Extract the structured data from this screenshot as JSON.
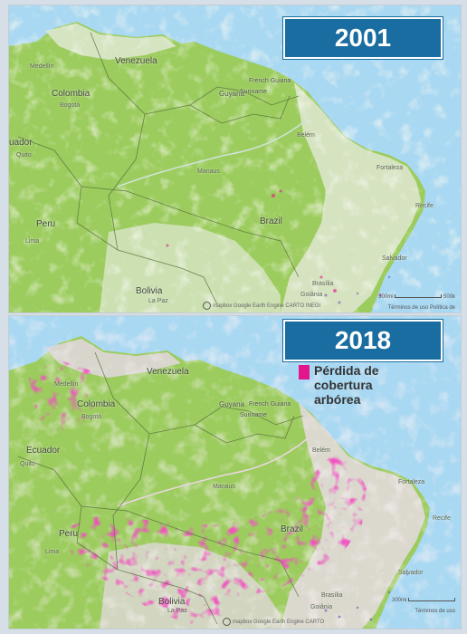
{
  "panels": [
    {
      "year": "2001",
      "labels": {
        "venezuela": "Venezuela",
        "colombia": "Colombia",
        "guyana": "Guyana",
        "suriname": "Suriname",
        "french_guiana": "French Guiana",
        "ecuador": "uador",
        "peru": "Peru",
        "brazil": "Brazil",
        "bolivia": "Bolivia",
        "lima": "Lima",
        "medellin": "Medellín",
        "bogota": "Bogotá",
        "quito": "Quito",
        "fortaleza": "Fortaleza",
        "recife": "Recife",
        "salvador": "Salvador",
        "brasilia": "Brasília",
        "goiania": "Goiânia",
        "la_paz": "La Paz",
        "manaus": "Manaus",
        "belem": "Belém"
      },
      "attribution": "mapbox  Google Earth Engine  CARTO  INEGI",
      "scale_label": "300mi",
      "scale_label_km": "500k",
      "terms": "Términos de uso  Política de"
    },
    {
      "year": "2018",
      "labels": {
        "venezuela": "Venezuela",
        "colombia": "Colombia",
        "guyana": "Guyana",
        "suriname": "Suriname",
        "french_guiana": "French Guiana",
        "ecuador": "Ecuador",
        "peru": "Peru",
        "brazil": "Brazil",
        "bolivia": "Bolivia",
        "lima": "Lima",
        "medellin": "Medellín",
        "bogota": "Bogotá",
        "quito": "Quito",
        "fortaleza": "Fortaleza",
        "recife": "Recife",
        "salvador": "Salvador",
        "brasilia": "Brasília",
        "goiania": "Goiânia",
        "la_paz": "La Paz",
        "manaus": "Manaus",
        "belem": "Belém"
      },
      "attribution": "mapbox  Google Earth Engine  CARTO",
      "scale_label": "300mi",
      "terms": "Términos de uso"
    }
  ],
  "legend": {
    "label": "Pérdida de cobertura arbórea",
    "color": "#e4158a"
  },
  "colors": {
    "ocean": "#a9d8f2",
    "forest": "#9ccc5e",
    "loss": "#e4158a",
    "box": "#1a6da0"
  }
}
